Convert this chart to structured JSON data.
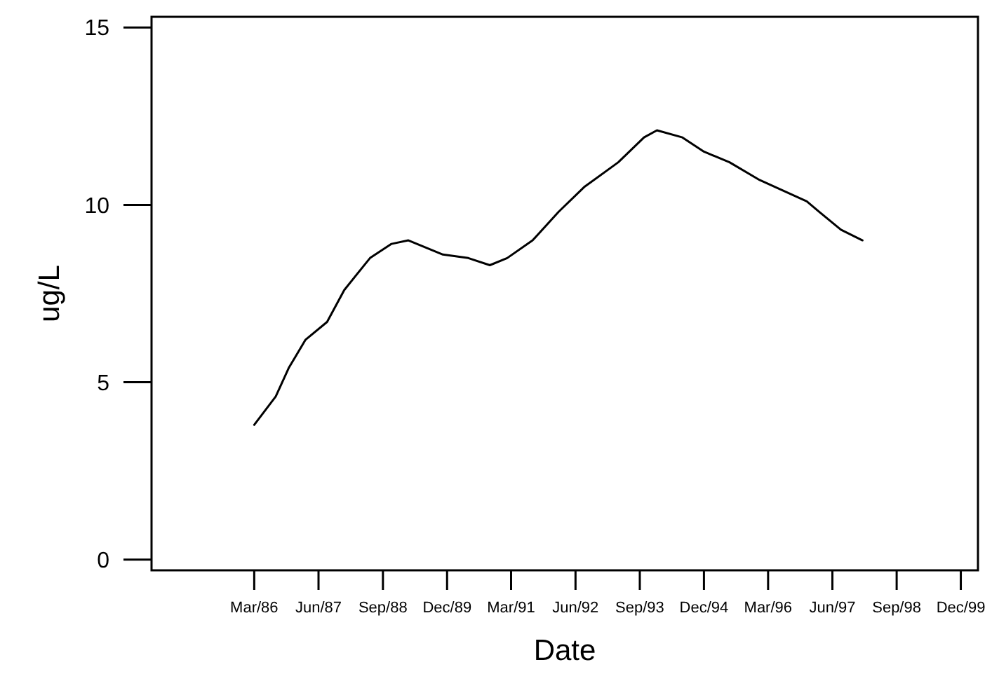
{
  "chart_data": {
    "type": "line",
    "xlabel": "Date",
    "ylabel": "ug/L",
    "x": [
      "1986-03",
      "1986-08",
      "1986-11",
      "1987-03",
      "1987-08",
      "1987-12",
      "1988-06",
      "1988-11",
      "1989-03",
      "1989-11",
      "1990-05",
      "1990-10",
      "1991-02",
      "1991-08",
      "1992-02",
      "1992-08",
      "1993-04",
      "1993-10",
      "1994-01",
      "1994-07",
      "1994-12",
      "1995-06",
      "1996-01",
      "1996-12",
      "1997-03",
      "1997-08",
      "1998-01"
    ],
    "series": [
      {
        "color": "#000000",
        "values": [
          3.8,
          4.6,
          5.4,
          6.2,
          6.7,
          7.6,
          8.5,
          8.9,
          9.0,
          8.6,
          8.5,
          8.3,
          8.5,
          9.0,
          9.8,
          10.5,
          11.2,
          11.9,
          12.1,
          11.9,
          11.5,
          11.2,
          10.7,
          10.1,
          9.8,
          9.3,
          9.0
        ]
      }
    ],
    "xlim": [
      "1984-03",
      "2000-04"
    ],
    "xticks": [
      {
        "value": "1986-03",
        "label": "Mar/86"
      },
      {
        "value": "1987-06",
        "label": "Jun/87"
      },
      {
        "value": "1988-09",
        "label": "Sep/88"
      },
      {
        "value": "1989-12",
        "label": "Dec/89"
      },
      {
        "value": "1991-03",
        "label": "Mar/91"
      },
      {
        "value": "1992-06",
        "label": "Jun/92"
      },
      {
        "value": "1993-09",
        "label": "Sep/93"
      },
      {
        "value": "1994-12",
        "label": "Dec/94"
      },
      {
        "value": "1996-03",
        "label": "Mar/96"
      },
      {
        "value": "1997-06",
        "label": "Jun/97"
      },
      {
        "value": "1998-09",
        "label": "Sep/98"
      },
      {
        "value": "1999-12",
        "label": "Dec/99"
      }
    ],
    "ylim": [
      -0.3,
      15.3
    ],
    "yticks": [
      0,
      5,
      10,
      15
    ],
    "marker": "none",
    "line_style": "solid"
  }
}
